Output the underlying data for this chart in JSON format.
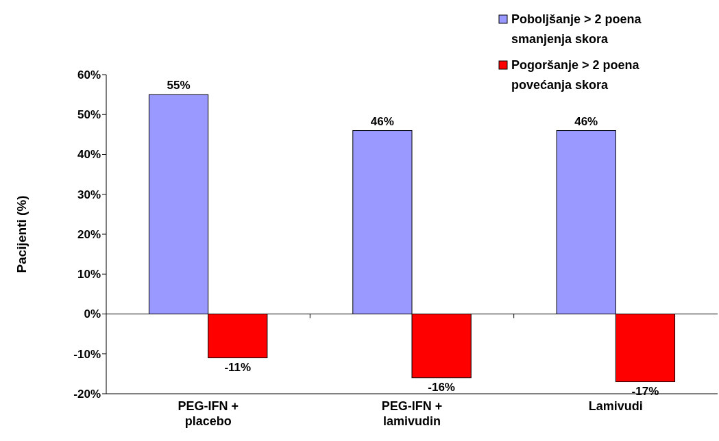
{
  "chart_data": {
    "type": "bar",
    "ylabel": "Pacijenti (%)",
    "categories": [
      "PEG-IFN + placebo",
      "PEG-IFN + lamivudin",
      "Lamivudi"
    ],
    "series": [
      {
        "name": "Poboljšanje > 2 poena smanjenja skora",
        "color": "#9999ff",
        "values": [
          55,
          46,
          46
        ]
      },
      {
        "name": "Pogoršanje > 2 poena povećanja skora",
        "color": "#ff0000",
        "values": [
          -11,
          -16,
          -17
        ]
      }
    ],
    "ylim": [
      -20,
      60
    ],
    "yticks": [
      {
        "value": -20,
        "label": "-20%"
      },
      {
        "value": -10,
        "label": "-10%"
      },
      {
        "value": 0,
        "label": "0%"
      },
      {
        "value": 10,
        "label": "10%"
      },
      {
        "value": 20,
        "label": "20%"
      },
      {
        "value": 30,
        "label": "30%"
      },
      {
        "value": 40,
        "label": "40%"
      },
      {
        "value": 50,
        "label": "50%"
      },
      {
        "value": 60,
        "label": "60%"
      }
    ],
    "value_labels": [
      [
        "55%",
        "46%",
        "46%"
      ],
      [
        "-11%",
        "-16%",
        "-17%"
      ]
    ],
    "legend": "top right"
  }
}
